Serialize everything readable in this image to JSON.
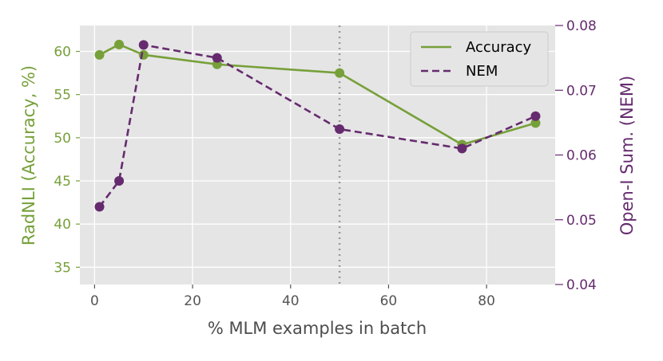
{
  "chart_data": {
    "type": "line",
    "xlabel": "% MLM examples in batch",
    "ylabel_left": "RadNLI (Accuracy, %)",
    "ylabel_right": "Open-I Sum. (NEM)",
    "xlim": [
      -3,
      94
    ],
    "ylim_left": [
      33,
      63
    ],
    "ylim_right": [
      0.04,
      0.08
    ],
    "x_ticks": [
      0,
      20,
      40,
      60,
      80
    ],
    "y_left_ticks": [
      35,
      40,
      45,
      50,
      55,
      60
    ],
    "y_right_ticks": [
      0.04,
      0.05,
      0.06,
      0.07,
      0.08
    ],
    "x_tick_labels": [
      "0",
      "20",
      "40",
      "60",
      "80"
    ],
    "y_left_tick_labels": [
      "35",
      "40",
      "45",
      "50",
      "55",
      "60"
    ],
    "y_right_tick_labels": [
      "0.04",
      "0.05",
      "0.06",
      "0.07",
      "0.08"
    ],
    "vline_x": 50,
    "grid": true,
    "legend_position": "top-right",
    "series": [
      {
        "name": "Accuracy",
        "axis": "left",
        "color": "#77a03a",
        "style": "solid",
        "x": [
          1,
          5,
          10,
          25,
          50,
          75,
          90
        ],
        "values": [
          59.6,
          60.8,
          59.6,
          58.5,
          57.5,
          49.2,
          51.7
        ]
      },
      {
        "name": "NEM",
        "axis": "right",
        "color": "#652b6e",
        "style": "dashed",
        "x": [
          1,
          5,
          10,
          25,
          50,
          75,
          90
        ],
        "values": [
          0.052,
          0.056,
          0.077,
          0.075,
          0.064,
          0.061,
          0.066
        ]
      }
    ]
  },
  "colors": {
    "left_axis": "#77a03a",
    "right_axis": "#652b6e",
    "plot_background": "#e5e5e5",
    "grid": "#ffffff",
    "vline": "#999999"
  }
}
